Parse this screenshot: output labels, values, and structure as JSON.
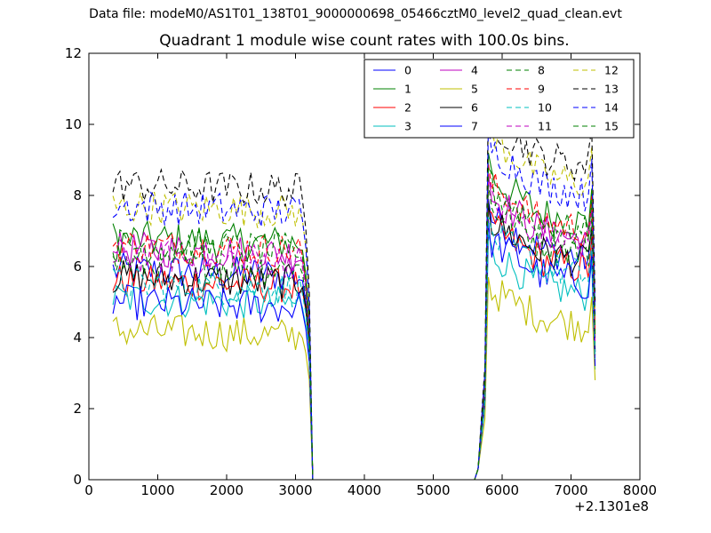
{
  "suptitle": "Data file: modeM0/AS1T01_138T01_9000000698_05466cztM0_level2_quad_clean.evt",
  "chart_data": {
    "type": "line",
    "title": "Quadrant 1 module wise count rates with 100.0s bins.",
    "x_offset_label": "+2.1301e8",
    "xlabel": "",
    "ylabel": "",
    "xlim": [
      0,
      8000
    ],
    "ylim": [
      0,
      12
    ],
    "xticks": [
      "0",
      "1000",
      "2000",
      "3000",
      "4000",
      "5000",
      "6000",
      "7000",
      "8000"
    ],
    "yticks": [
      "0",
      "2",
      "4",
      "6",
      "8",
      "10",
      "12"
    ],
    "grid": false,
    "legend_position": "top-right",
    "legend_columns": 4,
    "segments": [
      {
        "start": 350,
        "end": 3050,
        "dip_end": 3250
      },
      {
        "start": 5650,
        "end": 7350,
        "rise_start": 5650,
        "peak_x": 5800
      }
    ],
    "series": [
      {
        "name": "0",
        "color": "#0000ff",
        "dash": false,
        "level1": 5.9,
        "level2": 6.8,
        "peak": 7.9,
        "end1": 3.9,
        "end2": 3.6
      },
      {
        "name": "1",
        "color": "#008000",
        "dash": false,
        "level1": 6.8,
        "level2": 7.8,
        "peak": 9.2,
        "end1": 4.5,
        "end2": 4.2
      },
      {
        "name": "2",
        "color": "#ff0000",
        "dash": false,
        "level1": 5.6,
        "level2": 6.5,
        "peak": 7.6,
        "end1": 3.8,
        "end2": 3.5
      },
      {
        "name": "3",
        "color": "#00bfbf",
        "dash": false,
        "level1": 5.1,
        "level2": 5.8,
        "peak": 6.9,
        "end1": 3.4,
        "end2": 3.1
      },
      {
        "name": "4",
        "color": "#bf00bf",
        "dash": false,
        "level1": 6.5,
        "level2": 7.3,
        "peak": 8.6,
        "end1": 4.2,
        "end2": 4.0
      },
      {
        "name": "5",
        "color": "#bfbf00",
        "dash": false,
        "level1": 4.2,
        "level2": 4.9,
        "peak": 5.7,
        "end1": 2.8,
        "end2": 2.8
      },
      {
        "name": "6",
        "color": "#000000",
        "dash": false,
        "level1": 5.7,
        "level2": 6.7,
        "peak": 7.8,
        "end1": 3.8,
        "end2": 3.6
      },
      {
        "name": "7",
        "color": "#0000ff",
        "dash": false,
        "level1": 5.0,
        "level2": 6.1,
        "peak": 7.3,
        "end1": 3.3,
        "end2": 3.2
      },
      {
        "name": "8",
        "color": "#008000",
        "dash": true,
        "level1": 6.1,
        "level2": 7.0,
        "peak": 8.3,
        "end1": 4.0,
        "end2": 3.8
      },
      {
        "name": "9",
        "color": "#ff0000",
        "dash": true,
        "level1": 6.6,
        "level2": 7.6,
        "peak": 8.9,
        "end1": 4.3,
        "end2": 4.1
      },
      {
        "name": "10",
        "color": "#00bfbf",
        "dash": true,
        "level1": 5.5,
        "level2": 6.3,
        "peak": 7.4,
        "end1": 3.6,
        "end2": 3.4
      },
      {
        "name": "11",
        "color": "#bf00bf",
        "dash": true,
        "level1": 6.3,
        "level2": 7.2,
        "peak": 8.5,
        "end1": 4.1,
        "end2": 3.9
      },
      {
        "name": "12",
        "color": "#bfbf00",
        "dash": true,
        "level1": 7.7,
        "level2": 8.9,
        "peak": 10.3,
        "end1": 5.0,
        "end2": 4.6
      },
      {
        "name": "13",
        "color": "#000000",
        "dash": true,
        "level1": 8.3,
        "level2": 9.4,
        "peak": 10.7,
        "end1": 5.3,
        "end2": 5.0
      },
      {
        "name": "14",
        "color": "#0000ff",
        "dash": true,
        "level1": 7.7,
        "level2": 8.6,
        "peak": 10.0,
        "end1": 4.9,
        "end2": 4.6
      },
      {
        "name": "15",
        "color": "#008000",
        "dash": true,
        "level1": 6.6,
        "level2": 7.5,
        "peak": 8.8,
        "end1": 4.3,
        "end2": 4.1
      }
    ]
  }
}
